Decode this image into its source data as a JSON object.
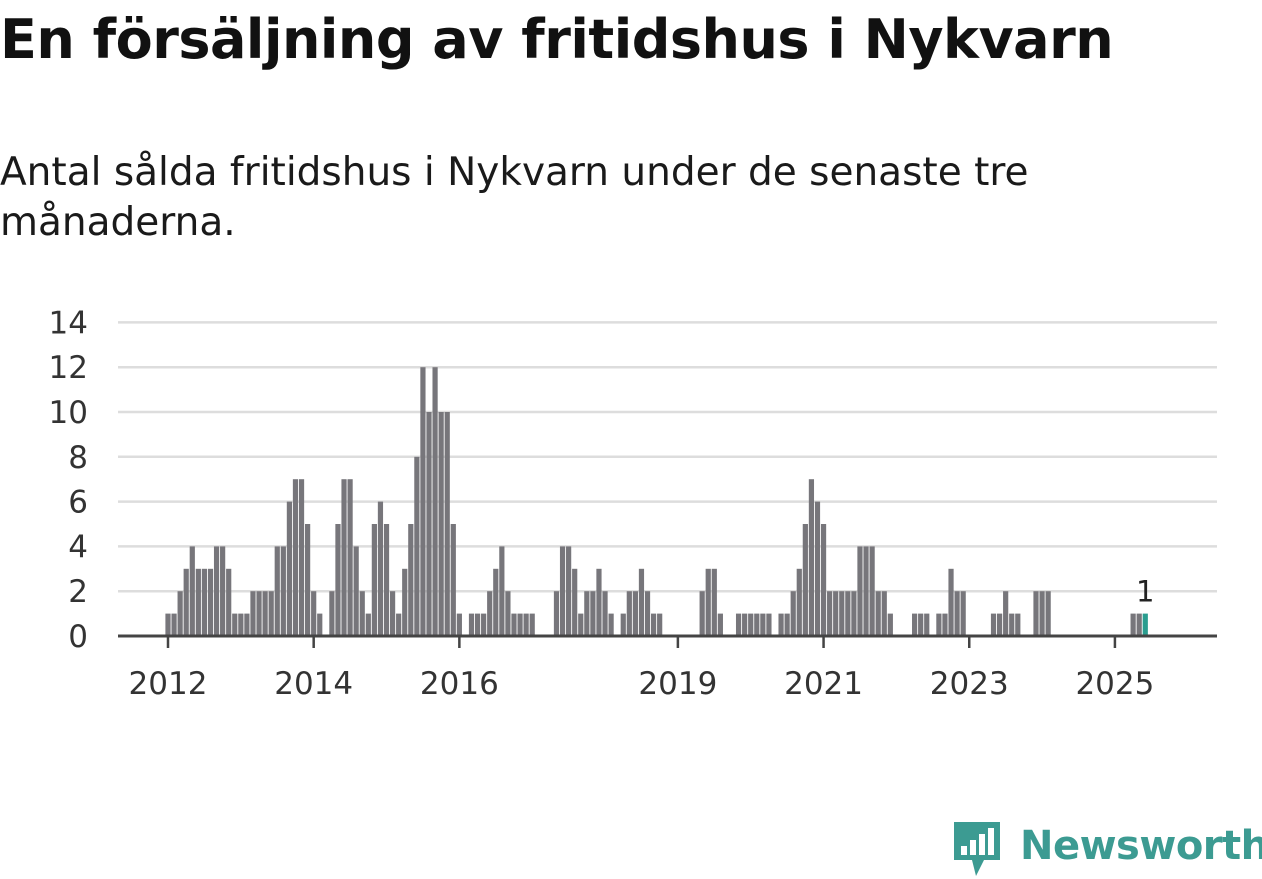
{
  "title": "En försäljning av fritidshus i Nykvarn",
  "subtitle": "Antal sålda fritidshus i Nykvarn under de senaste tre månaderna.",
  "brand": {
    "name": "Newsworthy",
    "color": "#3c9b92",
    "icon": "chart-bubble-icon"
  },
  "chart_data": {
    "type": "bar",
    "title": "",
    "xlabel": "",
    "ylabel": "",
    "ylim": [
      0,
      14
    ],
    "y_ticks": [
      0,
      2,
      4,
      6,
      8,
      10,
      12,
      14
    ],
    "x_ticks": [
      {
        "label": "2012",
        "date": "2012-01"
      },
      {
        "label": "2014",
        "date": "2014-01"
      },
      {
        "label": "2016",
        "date": "2016-01"
      },
      {
        "label": "2019",
        "date": "2019-01"
      },
      {
        "label": "2021",
        "date": "2021-01"
      },
      {
        "label": "2023",
        "date": "2023-01"
      },
      {
        "label": "2025",
        "date": "2025-01"
      }
    ],
    "grid": true,
    "bar_color": "#77767b",
    "highlight_color": "#2a9d8f",
    "highlight_label": "1",
    "series": [
      {
        "values": [
          {
            "date": "2012-01",
            "value": 1
          },
          {
            "date": "2012-02",
            "value": 1
          },
          {
            "date": "2012-03",
            "value": 2
          },
          {
            "date": "2012-04",
            "value": 3
          },
          {
            "date": "2012-05",
            "value": 4
          },
          {
            "date": "2012-06",
            "value": 3
          },
          {
            "date": "2012-07",
            "value": 3
          },
          {
            "date": "2012-08",
            "value": 3
          },
          {
            "date": "2012-09",
            "value": 4
          },
          {
            "date": "2012-10",
            "value": 4
          },
          {
            "date": "2012-11",
            "value": 3
          },
          {
            "date": "2012-12",
            "value": 1
          },
          {
            "date": "2013-01",
            "value": 1
          },
          {
            "date": "2013-02",
            "value": 1
          },
          {
            "date": "2013-03",
            "value": 2
          },
          {
            "date": "2013-04",
            "value": 2
          },
          {
            "date": "2013-05",
            "value": 2
          },
          {
            "date": "2013-06",
            "value": 2
          },
          {
            "date": "2013-07",
            "value": 4
          },
          {
            "date": "2013-08",
            "value": 4
          },
          {
            "date": "2013-09",
            "value": 6
          },
          {
            "date": "2013-10",
            "value": 7
          },
          {
            "date": "2013-11",
            "value": 7
          },
          {
            "date": "2013-12",
            "value": 5
          },
          {
            "date": "2014-01",
            "value": 2
          },
          {
            "date": "2014-02",
            "value": 1
          },
          {
            "date": "2014-03",
            "value": 0
          },
          {
            "date": "2014-04",
            "value": 2
          },
          {
            "date": "2014-05",
            "value": 5
          },
          {
            "date": "2014-06",
            "value": 7
          },
          {
            "date": "2014-07",
            "value": 7
          },
          {
            "date": "2014-08",
            "value": 4
          },
          {
            "date": "2014-09",
            "value": 2
          },
          {
            "date": "2014-10",
            "value": 1
          },
          {
            "date": "2014-11",
            "value": 5
          },
          {
            "date": "2014-12",
            "value": 6
          },
          {
            "date": "2015-01",
            "value": 5
          },
          {
            "date": "2015-02",
            "value": 2
          },
          {
            "date": "2015-03",
            "value": 1
          },
          {
            "date": "2015-04",
            "value": 3
          },
          {
            "date": "2015-05",
            "value": 5
          },
          {
            "date": "2015-06",
            "value": 8
          },
          {
            "date": "2015-07",
            "value": 12
          },
          {
            "date": "2015-08",
            "value": 10
          },
          {
            "date": "2015-09",
            "value": 12
          },
          {
            "date": "2015-10",
            "value": 10
          },
          {
            "date": "2015-11",
            "value": 10
          },
          {
            "date": "2015-12",
            "value": 5
          },
          {
            "date": "2016-01",
            "value": 1
          },
          {
            "date": "2016-02",
            "value": 0
          },
          {
            "date": "2016-03",
            "value": 1
          },
          {
            "date": "2016-04",
            "value": 1
          },
          {
            "date": "2016-05",
            "value": 1
          },
          {
            "date": "2016-06",
            "value": 2
          },
          {
            "date": "2016-07",
            "value": 3
          },
          {
            "date": "2016-08",
            "value": 4
          },
          {
            "date": "2016-09",
            "value": 2
          },
          {
            "date": "2016-10",
            "value": 1
          },
          {
            "date": "2016-11",
            "value": 1
          },
          {
            "date": "2016-12",
            "value": 1
          },
          {
            "date": "2017-01",
            "value": 1
          },
          {
            "date": "2017-05",
            "value": 2
          },
          {
            "date": "2017-06",
            "value": 4
          },
          {
            "date": "2017-07",
            "value": 4
          },
          {
            "date": "2017-08",
            "value": 3
          },
          {
            "date": "2017-09",
            "value": 1
          },
          {
            "date": "2017-10",
            "value": 2
          },
          {
            "date": "2017-11",
            "value": 2
          },
          {
            "date": "2017-12",
            "value": 3
          },
          {
            "date": "2018-01",
            "value": 2
          },
          {
            "date": "2018-02",
            "value": 1
          },
          {
            "date": "2018-03",
            "value": 0
          },
          {
            "date": "2018-04",
            "value": 1
          },
          {
            "date": "2018-05",
            "value": 2
          },
          {
            "date": "2018-06",
            "value": 2
          },
          {
            "date": "2018-07",
            "value": 3
          },
          {
            "date": "2018-08",
            "value": 2
          },
          {
            "date": "2018-09",
            "value": 1
          },
          {
            "date": "2018-10",
            "value": 1
          },
          {
            "date": "2019-05",
            "value": 2
          },
          {
            "date": "2019-06",
            "value": 3
          },
          {
            "date": "2019-07",
            "value": 3
          },
          {
            "date": "2019-08",
            "value": 1
          },
          {
            "date": "2019-11",
            "value": 1
          },
          {
            "date": "2019-12",
            "value": 1
          },
          {
            "date": "2020-01",
            "value": 1
          },
          {
            "date": "2020-02",
            "value": 1
          },
          {
            "date": "2020-03",
            "value": 1
          },
          {
            "date": "2020-04",
            "value": 1
          },
          {
            "date": "2020-06",
            "value": 1
          },
          {
            "date": "2020-07",
            "value": 1
          },
          {
            "date": "2020-08",
            "value": 2
          },
          {
            "date": "2020-09",
            "value": 3
          },
          {
            "date": "2020-10",
            "value": 5
          },
          {
            "date": "2020-11",
            "value": 7
          },
          {
            "date": "2020-12",
            "value": 6
          },
          {
            "date": "2021-01",
            "value": 5
          },
          {
            "date": "2021-02",
            "value": 2
          },
          {
            "date": "2021-03",
            "value": 2
          },
          {
            "date": "2021-04",
            "value": 2
          },
          {
            "date": "2021-05",
            "value": 2
          },
          {
            "date": "2021-06",
            "value": 2
          },
          {
            "date": "2021-07",
            "value": 4
          },
          {
            "date": "2021-08",
            "value": 4
          },
          {
            "date": "2021-09",
            "value": 4
          },
          {
            "date": "2021-10",
            "value": 2
          },
          {
            "date": "2021-11",
            "value": 2
          },
          {
            "date": "2021-12",
            "value": 1
          },
          {
            "date": "2022-04",
            "value": 1
          },
          {
            "date": "2022-05",
            "value": 1
          },
          {
            "date": "2022-06",
            "value": 1
          },
          {
            "date": "2022-08",
            "value": 1
          },
          {
            "date": "2022-09",
            "value": 1
          },
          {
            "date": "2022-10",
            "value": 3
          },
          {
            "date": "2022-11",
            "value": 2
          },
          {
            "date": "2022-12",
            "value": 2
          },
          {
            "date": "2023-05",
            "value": 1
          },
          {
            "date": "2023-06",
            "value": 1
          },
          {
            "date": "2023-07",
            "value": 2
          },
          {
            "date": "2023-08",
            "value": 1
          },
          {
            "date": "2023-09",
            "value": 1
          },
          {
            "date": "2023-12",
            "value": 2
          },
          {
            "date": "2024-01",
            "value": 2
          },
          {
            "date": "2024-02",
            "value": 2
          },
          {
            "date": "2025-04",
            "value": 1
          },
          {
            "date": "2025-05",
            "value": 1
          },
          {
            "date": "2025-06",
            "value": 1,
            "highlight": true
          }
        ]
      }
    ]
  }
}
